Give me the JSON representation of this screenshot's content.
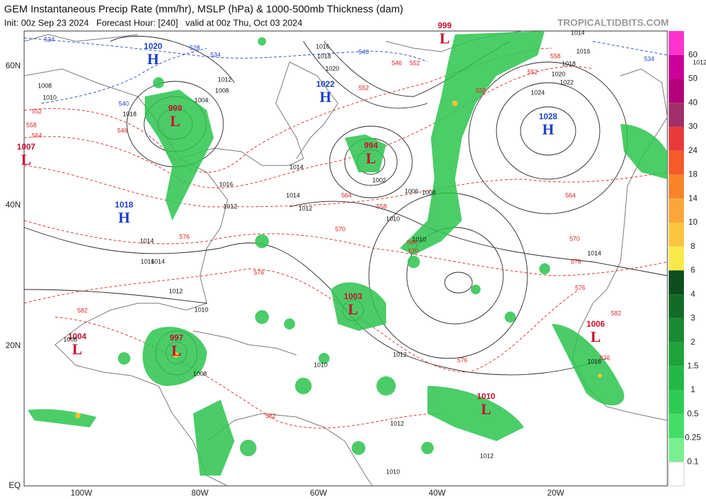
{
  "header": {
    "title": "GEM Instantaneous Precip Rate (mm/hr), MSLP (hPa) & 1000-500mb Thickness (dam)",
    "subtitle": "Init: 00z Sep 23 2024   Forecast Hour: [240]   valid at 00z Thu, Oct 03 2024",
    "watermark": "TROPICALTIDBITS.COM"
  },
  "map": {
    "lat_labels": [
      "60N",
      "40N",
      "20N",
      "EQ"
    ],
    "lon_labels": [
      "100W",
      "80W",
      "60W",
      "40W",
      "20W"
    ],
    "pressure_centers": [
      {
        "letter": "H",
        "value": "1020"
      },
      {
        "letter": "L",
        "value": "999"
      },
      {
        "letter": "L",
        "value": "1007"
      },
      {
        "letter": "H",
        "value": "1018"
      },
      {
        "letter": "H",
        "value": "1022"
      },
      {
        "letter": "L",
        "value": "994"
      },
      {
        "letter": "L",
        "value": "999"
      },
      {
        "letter": "H",
        "value": "1028"
      },
      {
        "letter": "L",
        "value": "1003"
      },
      {
        "letter": "L",
        "value": "997"
      },
      {
        "letter": "L",
        "value": "1004"
      },
      {
        "letter": "L",
        "value": "1006"
      },
      {
        "letter": "L",
        "value": "1010"
      }
    ],
    "isobar_labels": [
      "1016",
      "1018",
      "1020",
      "1012",
      "1008",
      "1004",
      "1008",
      "1010",
      "1018",
      "1014",
      "1016",
      "1012",
      "1014",
      "1012",
      "1010",
      "1002",
      "1006",
      "1008",
      "1010",
      "1014",
      "1016",
      "1014",
      "1012",
      "1010",
      "1010",
      "1012",
      "1024",
      "1022",
      "1020",
      "1018",
      "1016",
      "1014",
      "1012",
      "1008",
      "1012",
      "1014",
      "1016",
      "1008",
      "1010",
      "1012"
    ],
    "thickness_labels": [
      "552",
      "558",
      "564",
      "546",
      "552",
      "558",
      "564",
      "570",
      "576",
      "576",
      "552",
      "558",
      "564",
      "570",
      "576",
      "576",
      "546",
      "552",
      "558",
      "564",
      "570",
      "576",
      "582",
      "582",
      "576",
      "582"
    ],
    "thickness_labels_blue": [
      "534",
      "528",
      "534",
      "540",
      "540",
      "534"
    ]
  },
  "colorbar": {
    "labels": [
      "60",
      "50",
      "40",
      "30",
      "24",
      "18",
      "14",
      "10",
      "8",
      "6",
      "4",
      "3",
      "2",
      "1.5",
      "1",
      "0.5",
      "0.25",
      "0.1"
    ],
    "colors": [
      "#ff33cc",
      "#cc0099",
      "#b3007a",
      "#a0306a",
      "#e83a3a",
      "#f55a2a",
      "#f8842a",
      "#faa63a",
      "#fbc43d",
      "#fbe84a",
      "#0d4d1e",
      "#146b28",
      "#1a8a33",
      "#1fa33d",
      "#24b846",
      "#2ccc52",
      "#44dd66",
      "#7aef8f",
      "#ffffff"
    ]
  }
}
